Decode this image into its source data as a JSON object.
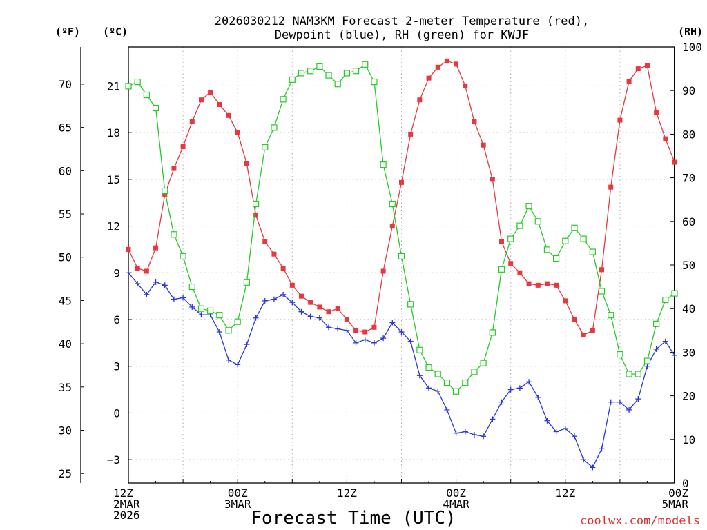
{
  "chart_data": {
    "type": "line",
    "title_line1": "2026030212 NAM3KM Forecast 2-meter Temperature (red),",
    "title_line2": "Dewpoint (blue), RH (green) for KWJF",
    "xlabel": "Forecast Time (UTC)",
    "watermark": "coolwx.com/models",
    "unit_f": "(ºF)",
    "unit_c": "(ºC)",
    "unit_rh": "(RH)",
    "xlim_hours": [
      0,
      60
    ],
    "ylim_c": [
      -4.5,
      23.5
    ],
    "ylim_rh": [
      0,
      100
    ],
    "f_ticks": [
      25,
      30,
      35,
      40,
      45,
      50,
      55,
      60,
      65,
      70
    ],
    "c_ticks": [
      -3,
      0,
      3,
      6,
      9,
      12,
      15,
      18,
      21
    ],
    "c_tick_labels": [
      "−3",
      "0",
      "3",
      "6",
      "9",
      "12",
      "15",
      "18",
      "21"
    ],
    "rh_ticks": [
      0,
      10,
      20,
      30,
      40,
      50,
      60,
      70,
      80,
      90,
      100
    ],
    "x_ticks": [
      {
        "hour": 0,
        "lines": [
          "12Z",
          "2MAR",
          "2026"
        ]
      },
      {
        "hour": 12,
        "lines": [
          "00Z",
          "3MAR"
        ]
      },
      {
        "hour": 24,
        "lines": [
          "12Z"
        ]
      },
      {
        "hour": 36,
        "lines": [
          "00Z",
          "4MAR"
        ]
      },
      {
        "hour": 48,
        "lines": [
          "12Z"
        ]
      },
      {
        "hour": 60,
        "lines": [
          "00Z",
          "5MAR"
        ]
      }
    ],
    "colors": {
      "temperature": "#e8373d",
      "dewpoint": "#2a37d8",
      "rh": "#22cc22"
    },
    "hours": [
      0,
      1,
      2,
      3,
      4,
      5,
      6,
      7,
      8,
      9,
      10,
      11,
      12,
      13,
      14,
      15,
      16,
      17,
      18,
      19,
      20,
      21,
      22,
      23,
      24,
      25,
      26,
      27,
      28,
      29,
      30,
      31,
      32,
      33,
      34,
      35,
      36,
      37,
      38,
      39,
      40,
      41,
      42,
      43,
      44,
      45,
      46,
      47,
      48,
      49,
      50,
      51,
      52,
      53,
      54,
      55,
      56,
      57,
      58,
      59,
      60
    ],
    "series": [
      {
        "name": "Temperature",
        "axis": "c",
        "values": [
          10.5,
          9.3,
          9.1,
          10.6,
          14.0,
          15.7,
          17.1,
          18.7,
          20.1,
          20.6,
          19.8,
          19.1,
          18.0,
          16.0,
          12.7,
          11.0,
          10.2,
          9.3,
          8.2,
          7.5,
          7.1,
          6.8,
          6.5,
          6.7,
          6.0,
          5.3,
          5.2,
          5.5,
          9.1,
          12.0,
          14.8,
          17.9,
          20.1,
          21.5,
          22.2,
          22.6,
          22.4,
          21.0,
          18.7,
          17.2,
          15.0,
          11.0,
          9.6,
          9.0,
          8.3,
          8.2,
          8.3,
          8.2,
          7.2,
          6.0,
          5.0,
          5.3,
          9.2,
          14.5,
          18.8,
          21.3,
          22.1,
          22.3,
          19.3,
          17.6,
          16.1
        ]
      },
      {
        "name": "Dewpoint",
        "axis": "c",
        "values": [
          9.0,
          8.3,
          7.6,
          8.4,
          8.2,
          7.3,
          7.4,
          6.8,
          6.3,
          6.3,
          5.2,
          3.4,
          3.1,
          4.4,
          6.1,
          7.2,
          7.3,
          7.6,
          7.1,
          6.5,
          6.2,
          6.1,
          5.5,
          5.4,
          5.3,
          4.5,
          4.7,
          4.5,
          4.8,
          5.8,
          5.2,
          4.6,
          2.4,
          1.6,
          1.4,
          0.2,
          -1.3,
          -1.2,
          -1.4,
          -1.5,
          -0.4,
          0.7,
          1.5,
          1.6,
          2.0,
          1.0,
          -0.5,
          -1.2,
          -1.0,
          -1.5,
          -3.0,
          -3.5,
          -2.3,
          0.7,
          0.7,
          0.2,
          0.9,
          3.0,
          4.1,
          4.6,
          3.7
        ]
      },
      {
        "name": "RH",
        "axis": "rh",
        "values": [
          91,
          92,
          89,
          86,
          67,
          57,
          52,
          45,
          40,
          39.5,
          38.5,
          35,
          37,
          46,
          64,
          77,
          81.5,
          88,
          92.5,
          94,
          94.5,
          95.5,
          93.5,
          91.5,
          94,
          94.5,
          96,
          92,
          73,
          64,
          52,
          41,
          30.5,
          26.5,
          25,
          23,
          21,
          23,
          25.5,
          27.5,
          34.5,
          49,
          56,
          59,
          63.5,
          60,
          53.5,
          51.5,
          55.5,
          58.5,
          56,
          53,
          44,
          38.5,
          29.5,
          25,
          25,
          28,
          36.5,
          42,
          43.5
        ]
      }
    ]
  }
}
